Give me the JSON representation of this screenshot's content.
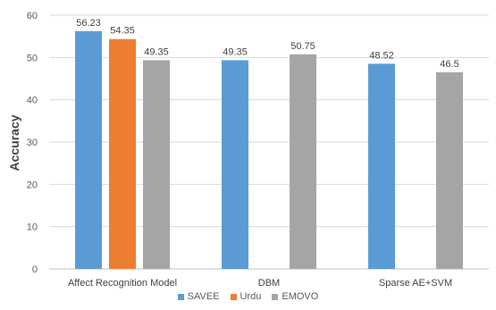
{
  "chart_data": {
    "type": "bar",
    "categories": [
      "Affect Recognition Model",
      "DBM",
      "Sparse AE+SVM"
    ],
    "series": [
      {
        "name": "SAVEE",
        "color": "#5b9bd5",
        "values": [
          56.23,
          49.35,
          48.52
        ]
      },
      {
        "name": "Urdu",
        "color": "#ed7d31",
        "values": [
          54.35,
          null,
          null
        ]
      },
      {
        "name": "EMOVO",
        "color": "#a5a5a5",
        "values": [
          49.35,
          50.75,
          46.5
        ]
      }
    ],
    "data_labels": [
      [
        "56.23",
        "49.35",
        "48.52"
      ],
      [
        "54.35",
        null,
        null
      ],
      [
        "49.35",
        "50.75",
        "46.5"
      ]
    ],
    "title": "",
    "xlabel": "",
    "ylabel": "Accuracy",
    "ylim": [
      0,
      60
    ],
    "yticks": [
      0,
      10,
      20,
      30,
      40,
      50,
      60
    ],
    "grid": true,
    "legend_position": "bottom"
  }
}
